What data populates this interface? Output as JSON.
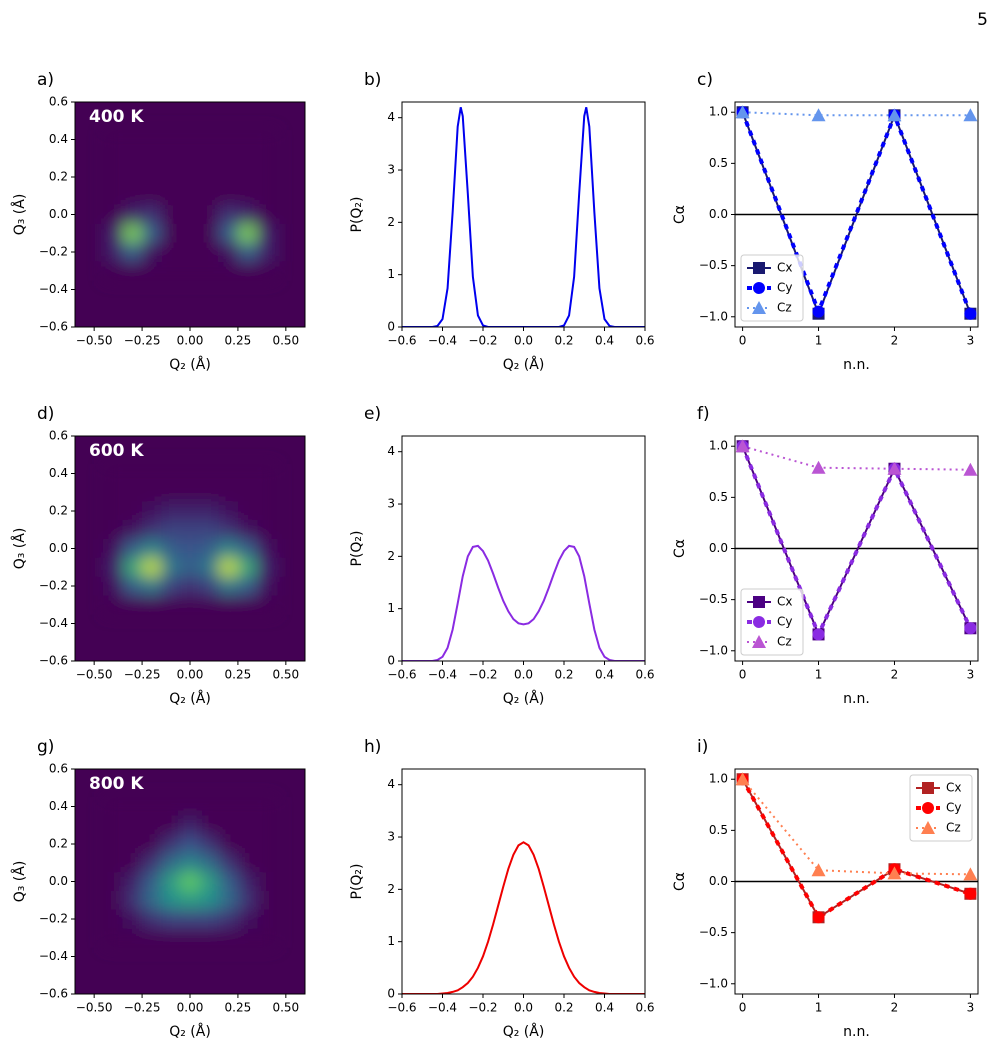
{
  "page_number": "5",
  "chart_data": [
    {
      "type": "heatmap",
      "label": "a)",
      "annotation": "400 K",
      "colormap": "viridis",
      "xlabel": "Q₂ (Å)",
      "ylabel": "Q₃ (Å)",
      "xlim": [
        -0.6,
        0.6
      ],
      "ylim": [
        -0.6,
        0.6
      ],
      "xticks": [
        {
          "value": -0.5,
          "label": "−0.50"
        },
        {
          "value": -0.25,
          "label": "−0.25"
        },
        {
          "value": 0,
          "label": "0.00"
        },
        {
          "value": 0.25,
          "label": "0.25"
        },
        {
          "value": 0.5,
          "label": "0.50"
        }
      ],
      "yticks": [
        {
          "value": -0.6,
          "label": "−0.6"
        },
        {
          "value": -0.4,
          "label": "−0.4"
        },
        {
          "value": -0.2,
          "label": "−0.2"
        },
        {
          "value": 0,
          "label": "0.0"
        },
        {
          "value": 0.2,
          "label": "0.2"
        },
        {
          "value": 0.4,
          "label": "0.4"
        },
        {
          "value": 0.6,
          "label": "0.6"
        }
      ],
      "x": [
        -0.4,
        -0.3,
        -0.2,
        -0.1,
        0,
        0.1,
        0.2,
        0.3,
        0.4
      ],
      "y": [
        0.4,
        0.3,
        0.2,
        0.1,
        0,
        -0.1,
        -0.2,
        -0.3
      ],
      "z": [
        [
          0,
          0,
          0,
          0,
          0,
          0,
          0,
          0,
          0
        ],
        [
          0,
          0,
          0,
          0,
          0,
          0,
          0,
          0,
          0
        ],
        [
          0,
          0,
          0,
          0,
          0,
          0,
          0,
          0,
          0
        ],
        [
          0,
          0,
          0,
          0,
          0,
          0,
          0,
          0,
          0
        ],
        [
          0,
          0.1,
          0.15,
          0,
          0,
          0,
          0.15,
          0.1,
          0
        ],
        [
          0.1,
          0.8,
          0.3,
          0,
          0,
          0,
          0.3,
          0.8,
          0.1
        ],
        [
          0.1,
          0.3,
          0.05,
          0,
          0,
          0,
          0.05,
          0.3,
          0.1
        ],
        [
          0,
          0,
          0,
          0,
          0,
          0,
          0,
          0,
          0
        ]
      ]
    },
    {
      "type": "line",
      "label": "b)",
      "xlabel": "Q₂ (Å)",
      "ylabel": "P(Q₂)",
      "xlim": [
        -0.6,
        0.6
      ],
      "ylim": [
        0,
        4.3
      ],
      "xticks": [
        {
          "value": -0.6,
          "label": "−0.6"
        },
        {
          "value": -0.4,
          "label": "−0.4"
        },
        {
          "value": -0.2,
          "label": "−0.2"
        },
        {
          "value": 0,
          "label": "0.0"
        },
        {
          "value": 0.2,
          "label": "0.2"
        },
        {
          "value": 0.4,
          "label": "0.4"
        },
        {
          "value": 0.6,
          "label": "0.6"
        }
      ],
      "yticks": [
        0,
        1,
        2,
        3,
        4
      ],
      "x": [
        -0.6,
        -0.575,
        -0.55,
        -0.525,
        -0.5,
        -0.475,
        -0.45,
        -0.425,
        -0.4,
        -0.375,
        -0.35,
        -0.325,
        -0.31,
        -0.3,
        -0.275,
        -0.25,
        -0.225,
        -0.2,
        -0.175,
        -0.15,
        -0.125,
        -0.1,
        -0.075,
        -0.05,
        -0.025,
        0,
        0.025,
        0.05,
        0.075,
        0.1,
        0.125,
        0.15,
        0.175,
        0.2,
        0.225,
        0.25,
        0.275,
        0.3,
        0.31,
        0.325,
        0.35,
        0.375,
        0.4,
        0.425,
        0.45,
        0.475,
        0.5,
        0.525,
        0.55,
        0.575,
        0.6
      ],
      "series": [
        {
          "color": "#0000ee",
          "values": [
            0,
            0,
            0,
            0,
            0,
            0,
            0,
            0.02,
            0.15,
            0.74,
            2.19,
            3.83,
            4.2,
            4.03,
            2.55,
            0.96,
            0.22,
            0.03,
            0,
            0,
            0,
            0,
            0,
            0,
            0,
            0,
            0,
            0,
            0,
            0,
            0,
            0,
            0,
            0.03,
            0.22,
            0.96,
            2.55,
            4.03,
            4.2,
            3.83,
            2.19,
            0.74,
            0.15,
            0.02,
            0,
            0,
            0,
            0,
            0,
            0,
            0
          ]
        }
      ]
    },
    {
      "type": "line",
      "label": "c)",
      "xlabel": "n.n.",
      "ylabel": "Cα",
      "legend": "lower left",
      "hline": 0,
      "xlim": [
        -0.1,
        3.1
      ],
      "ylim": [
        -1.1,
        1.1
      ],
      "xticks": [
        0,
        1,
        2,
        3
      ],
      "yticks": [
        {
          "value": -1,
          "label": "−1.0"
        },
        {
          "value": -0.5,
          "label": "−0.5"
        },
        {
          "value": 0,
          "label": "0.0"
        },
        {
          "value": 0.5,
          "label": "0.5"
        },
        {
          "value": 1,
          "label": "1.0"
        }
      ],
      "x": [
        0,
        1,
        2,
        3
      ],
      "series": [
        {
          "name": "Cx",
          "color": "#191970",
          "marker": "square",
          "linestyle": "solid",
          "values": [
            1,
            -0.97,
            0.97,
            -0.97
          ]
        },
        {
          "name": "Cy",
          "color": "#0000ff",
          "marker": "circle",
          "linestyle": "dashed",
          "values": [
            1,
            -0.95,
            0.97,
            -0.97
          ]
        },
        {
          "name": "Cz",
          "color": "#6495ed",
          "marker": "triangle",
          "linestyle": "dotted",
          "values": [
            1,
            0.97,
            0.97,
            0.97
          ]
        }
      ]
    },
    {
      "type": "heatmap",
      "label": "d)",
      "annotation": "600 K",
      "colormap": "viridis",
      "xlabel": "Q₂ (Å)",
      "ylabel": "Q₃ (Å)",
      "xlim": [
        -0.6,
        0.6
      ],
      "ylim": [
        -0.6,
        0.6
      ],
      "xticks": [
        {
          "value": -0.5,
          "label": "−0.50"
        },
        {
          "value": -0.25,
          "label": "−0.25"
        },
        {
          "value": 0,
          "label": "0.00"
        },
        {
          "value": 0.25,
          "label": "0.25"
        },
        {
          "value": 0.5,
          "label": "0.50"
        }
      ],
      "yticks": [
        {
          "value": -0.6,
          "label": "−0.6"
        },
        {
          "value": -0.4,
          "label": "−0.4"
        },
        {
          "value": -0.2,
          "label": "−0.2"
        },
        {
          "value": 0,
          "label": "0.0"
        },
        {
          "value": 0.2,
          "label": "0.2"
        },
        {
          "value": 0.4,
          "label": "0.4"
        },
        {
          "value": 0.6,
          "label": "0.6"
        }
      ],
      "x": [
        -0.4,
        -0.3,
        -0.2,
        -0.1,
        0,
        0.1,
        0.2,
        0.3,
        0.4
      ],
      "y": [
        0.4,
        0.3,
        0.2,
        0.1,
        0,
        -0.1,
        -0.2,
        -0.3
      ],
      "z": [
        [
          0,
          0,
          0,
          0,
          0,
          0,
          0,
          0,
          0
        ],
        [
          0,
          0,
          0,
          0,
          0,
          0,
          0,
          0,
          0
        ],
        [
          0,
          0,
          0.05,
          0.1,
          0.1,
          0.1,
          0.05,
          0,
          0
        ],
        [
          0,
          0.05,
          0.15,
          0.2,
          0.2,
          0.2,
          0.15,
          0.05,
          0
        ],
        [
          0.05,
          0.3,
          0.45,
          0.3,
          0.25,
          0.3,
          0.45,
          0.3,
          0.05
        ],
        [
          0.1,
          0.6,
          0.9,
          0.4,
          0.3,
          0.4,
          0.9,
          0.6,
          0.1
        ],
        [
          0.05,
          0.3,
          0.4,
          0.2,
          0.15,
          0.2,
          0.4,
          0.3,
          0.05
        ],
        [
          0,
          0,
          0,
          0,
          0,
          0,
          0,
          0,
          0
        ]
      ]
    },
    {
      "type": "line",
      "label": "e)",
      "xlabel": "Q₂ (Å)",
      "ylabel": "P(Q₂)",
      "xlim": [
        -0.6,
        0.6
      ],
      "ylim": [
        0,
        4.3
      ],
      "xticks": [
        {
          "value": -0.6,
          "label": "−0.6"
        },
        {
          "value": -0.4,
          "label": "−0.4"
        },
        {
          "value": -0.2,
          "label": "−0.2"
        },
        {
          "value": 0,
          "label": "0.0"
        },
        {
          "value": 0.2,
          "label": "0.2"
        },
        {
          "value": 0.4,
          "label": "0.4"
        },
        {
          "value": 0.6,
          "label": "0.6"
        }
      ],
      "yticks": [
        0,
        1,
        2,
        3,
        4
      ],
      "x": [
        -0.6,
        -0.575,
        -0.55,
        -0.525,
        -0.5,
        -0.475,
        -0.45,
        -0.425,
        -0.4,
        -0.375,
        -0.35,
        -0.325,
        -0.3,
        -0.275,
        -0.25,
        -0.225,
        -0.2,
        -0.175,
        -0.15,
        -0.125,
        -0.1,
        -0.075,
        -0.05,
        -0.025,
        0,
        0.025,
        0.05,
        0.075,
        0.1,
        0.125,
        0.15,
        0.175,
        0.2,
        0.225,
        0.25,
        0.275,
        0.3,
        0.325,
        0.35,
        0.375,
        0.4,
        0.425,
        0.45,
        0.475,
        0.5,
        0.525,
        0.55,
        0.575,
        0.6
      ],
      "series": [
        {
          "color": "#8a2be2",
          "values": [
            0,
            0,
            0,
            0,
            0,
            0,
            0,
            0.02,
            0.08,
            0.25,
            0.6,
            1.1,
            1.62,
            2.0,
            2.18,
            2.2,
            2.1,
            1.92,
            1.67,
            1.4,
            1.15,
            0.95,
            0.8,
            0.72,
            0.7,
            0.72,
            0.8,
            0.95,
            1.15,
            1.4,
            1.67,
            1.92,
            2.1,
            2.2,
            2.18,
            2.0,
            1.62,
            1.1,
            0.6,
            0.25,
            0.08,
            0.02,
            0,
            0,
            0,
            0,
            0,
            0,
            0
          ]
        }
      ]
    },
    {
      "type": "line",
      "label": "f)",
      "xlabel": "n.n.",
      "ylabel": "Cα",
      "legend": "lower left",
      "hline": 0,
      "xlim": [
        -0.1,
        3.1
      ],
      "ylim": [
        -1.1,
        1.1
      ],
      "xticks": [
        0,
        1,
        2,
        3
      ],
      "yticks": [
        {
          "value": -1,
          "label": "−1.0"
        },
        {
          "value": -0.5,
          "label": "−0.5"
        },
        {
          "value": 0,
          "label": "0.0"
        },
        {
          "value": 0.5,
          "label": "0.5"
        },
        {
          "value": 1,
          "label": "1.0"
        }
      ],
      "x": [
        0,
        1,
        2,
        3
      ],
      "series": [
        {
          "name": "Cx",
          "color": "#4b0082",
          "marker": "square",
          "linestyle": "solid",
          "values": [
            1,
            -0.84,
            0.78,
            -0.78
          ]
        },
        {
          "name": "Cy",
          "color": "#8a2be2",
          "marker": "circle",
          "linestyle": "dashed",
          "values": [
            1,
            -0.84,
            0.78,
            -0.78
          ]
        },
        {
          "name": "Cz",
          "color": "#ba55d3",
          "marker": "triangle",
          "linestyle": "dotted",
          "values": [
            1,
            0.79,
            0.78,
            0.77
          ]
        }
      ]
    },
    {
      "type": "heatmap",
      "label": "g)",
      "annotation": "800 K",
      "colormap": "viridis",
      "xlabel": "Q₂ (Å)",
      "ylabel": "Q₃ (Å)",
      "xlim": [
        -0.6,
        0.6
      ],
      "ylim": [
        -0.6,
        0.6
      ],
      "xticks": [
        {
          "value": -0.5,
          "label": "−0.50"
        },
        {
          "value": -0.25,
          "label": "−0.25"
        },
        {
          "value": 0,
          "label": "0.00"
        },
        {
          "value": 0.25,
          "label": "0.25"
        },
        {
          "value": 0.5,
          "label": "0.50"
        }
      ],
      "yticks": [
        {
          "value": -0.6,
          "label": "−0.6"
        },
        {
          "value": -0.4,
          "label": "−0.4"
        },
        {
          "value": -0.2,
          "label": "−0.2"
        },
        {
          "value": 0,
          "label": "0.0"
        },
        {
          "value": 0.2,
          "label": "0.2"
        },
        {
          "value": 0.4,
          "label": "0.4"
        },
        {
          "value": 0.6,
          "label": "0.6"
        }
      ],
      "x": [
        -0.4,
        -0.3,
        -0.2,
        -0.1,
        0,
        0.1,
        0.2,
        0.3,
        0.4
      ],
      "y": [
        0.4,
        0.3,
        0.2,
        0.1,
        0,
        -0.1,
        -0.2,
        -0.3
      ],
      "z": [
        [
          0,
          0,
          0,
          0,
          0,
          0,
          0,
          0,
          0
        ],
        [
          0,
          0,
          0,
          0,
          0.1,
          0,
          0,
          0,
          0
        ],
        [
          0,
          0,
          0,
          0.15,
          0.25,
          0.15,
          0,
          0,
          0
        ],
        [
          0,
          0,
          0.15,
          0.35,
          0.45,
          0.35,
          0.15,
          0,
          0
        ],
        [
          0,
          0.1,
          0.3,
          0.55,
          0.75,
          0.55,
          0.3,
          0.1,
          0
        ],
        [
          0,
          0.15,
          0.35,
          0.5,
          0.55,
          0.5,
          0.35,
          0.15,
          0
        ],
        [
          0,
          0.05,
          0.15,
          0.2,
          0.2,
          0.2,
          0.15,
          0.05,
          0
        ],
        [
          0,
          0,
          0,
          0,
          0,
          0,
          0,
          0,
          0
        ]
      ]
    },
    {
      "type": "line",
      "label": "h)",
      "xlabel": "Q₂ (Å)",
      "ylabel": "P(Q₂)",
      "xlim": [
        -0.6,
        0.6
      ],
      "ylim": [
        0,
        4.3
      ],
      "xticks": [
        {
          "value": -0.6,
          "label": "−0.6"
        },
        {
          "value": -0.4,
          "label": "−0.4"
        },
        {
          "value": -0.2,
          "label": "−0.2"
        },
        {
          "value": 0,
          "label": "0.0"
        },
        {
          "value": 0.2,
          "label": "0.2"
        },
        {
          "value": 0.4,
          "label": "0.4"
        },
        {
          "value": 0.6,
          "label": "0.6"
        }
      ],
      "yticks": [
        0,
        1,
        2,
        3,
        4
      ],
      "x": [
        -0.6,
        -0.575,
        -0.55,
        -0.525,
        -0.5,
        -0.475,
        -0.45,
        -0.425,
        -0.4,
        -0.375,
        -0.35,
        -0.325,
        -0.3,
        -0.275,
        -0.25,
        -0.225,
        -0.2,
        -0.175,
        -0.15,
        -0.125,
        -0.1,
        -0.075,
        -0.05,
        -0.025,
        0,
        0.025,
        0.05,
        0.075,
        0.1,
        0.125,
        0.15,
        0.175,
        0.2,
        0.225,
        0.25,
        0.275,
        0.3,
        0.325,
        0.35,
        0.375,
        0.4,
        0.425,
        0.45,
        0.475,
        0.5,
        0.525,
        0.55,
        0.575,
        0.6
      ],
      "series": [
        {
          "color": "#ee0000",
          "values": [
            0,
            0,
            0,
            0,
            0,
            0,
            0,
            0,
            0.01,
            0.02,
            0.04,
            0.07,
            0.13,
            0.21,
            0.33,
            0.5,
            0.72,
            1.0,
            1.33,
            1.69,
            2.05,
            2.39,
            2.66,
            2.84,
            2.9,
            2.84,
            2.66,
            2.39,
            2.05,
            1.69,
            1.33,
            1.0,
            0.72,
            0.5,
            0.33,
            0.21,
            0.13,
            0.07,
            0.04,
            0.02,
            0.01,
            0,
            0,
            0,
            0,
            0,
            0,
            0,
            0
          ]
        }
      ]
    },
    {
      "type": "line",
      "label": "i)",
      "xlabel": "n.n.",
      "ylabel": "Cα",
      "legend": "upper right",
      "hline": 0,
      "xlim": [
        -0.1,
        3.1
      ],
      "ylim": [
        -1.1,
        1.1
      ],
      "xticks": [
        0,
        1,
        2,
        3
      ],
      "yticks": [
        {
          "value": -1,
          "label": "−1.0"
        },
        {
          "value": -0.5,
          "label": "−0.5"
        },
        {
          "value": 0,
          "label": "0.0"
        },
        {
          "value": 0.5,
          "label": "0.5"
        },
        {
          "value": 1,
          "label": "1.0"
        }
      ],
      "x": [
        0,
        1,
        2,
        3
      ],
      "series": [
        {
          "name": "Cx",
          "color": "#b22222",
          "marker": "square",
          "linestyle": "solid",
          "values": [
            1,
            -0.35,
            0.12,
            -0.12
          ]
        },
        {
          "name": "Cy",
          "color": "#ff0000",
          "marker": "circle",
          "linestyle": "dashed",
          "values": [
            1,
            -0.35,
            0.12,
            -0.12
          ]
        },
        {
          "name": "Cz",
          "color": "#ff7f50",
          "marker": "triangle",
          "linestyle": "dotted",
          "values": [
            1,
            0.11,
            0.08,
            0.07
          ]
        }
      ]
    }
  ]
}
